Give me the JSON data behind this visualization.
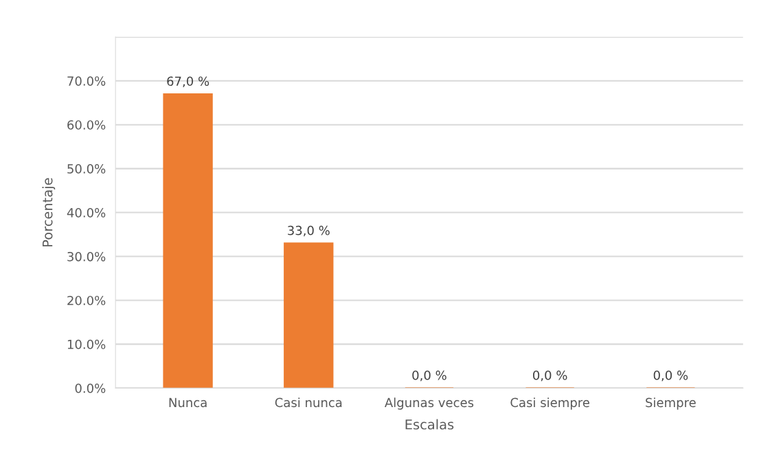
{
  "chart_data": {
    "type": "bar",
    "categories": [
      "Nunca",
      "Casi nunca",
      "Algunas veces",
      "Casi siempre",
      "Siempre"
    ],
    "values": [
      67.0,
      33.0,
      0.0,
      0.0,
      0.0
    ],
    "value_labels": [
      "67,0 %",
      "33,0 %",
      "0,0 %",
      "0,0 %",
      "0,0 %"
    ],
    "color": "#ed7d31",
    "xlabel": "Escalas",
    "ylabel": "Porcentaje",
    "ylim": [
      0,
      80
    ],
    "yticks": [
      {
        "value": 0,
        "label": "0.0%"
      },
      {
        "value": 10,
        "label": "10.0%"
      },
      {
        "value": 20,
        "label": "20.0%"
      },
      {
        "value": 30,
        "label": "30.0%"
      },
      {
        "value": 40,
        "label": "40.0%"
      },
      {
        "value": 50,
        "label": "50.0%"
      },
      {
        "value": 60,
        "label": "60.0%"
      },
      {
        "value": 70,
        "label": "70.0%"
      },
      {
        "value": 80,
        "label": null
      }
    ],
    "grid": "y"
  }
}
